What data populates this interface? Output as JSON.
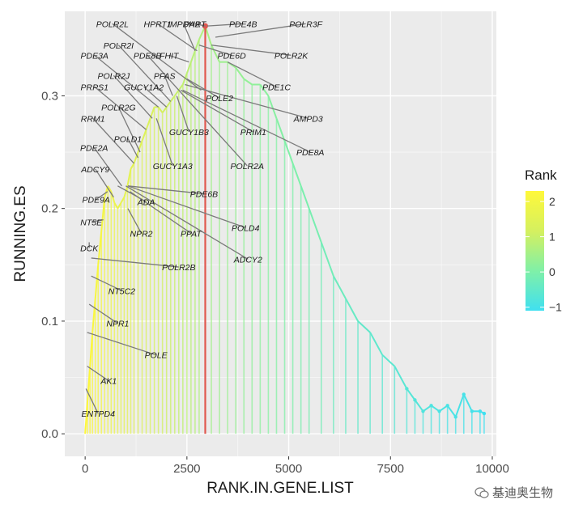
{
  "chart_data": {
    "type": "line",
    "title": "",
    "xlabel": "RANK.IN.GENE.LIST",
    "ylabel": "RUNNING.ES",
    "xlim": [
      -500,
      10100
    ],
    "ylim": [
      -0.02,
      0.375
    ],
    "x_ticks": [
      "0",
      "2500",
      "5000",
      "7500",
      "10000"
    ],
    "y_ticks": [
      "0.0",
      "0.1",
      "0.2",
      "0.3"
    ],
    "grid": true,
    "legend": {
      "title": "Rank",
      "position": "right",
      "ticks": [
        "2",
        "1",
        "0",
        "−1"
      ],
      "range": [
        -1.1,
        2.3
      ],
      "colors": [
        "#40E0F0",
        "#7FF0A8",
        "#D4F060",
        "#FFF83A"
      ]
    },
    "peak_rank": 2950,
    "series": [
      {
        "x": [
          0,
          60,
          120,
          180,
          250,
          320,
          400,
          480,
          560,
          640,
          720,
          800,
          880,
          960,
          1040,
          1120,
          1200,
          1300,
          1400,
          1500,
          1600,
          1700,
          1800,
          1900,
          2000,
          2100,
          2200,
          2300,
          2400,
          2500,
          2600,
          2700,
          2800,
          2950,
          3100,
          3300,
          3500,
          3700,
          3900,
          4100,
          4300,
          4500,
          4700,
          4900,
          5100,
          5300,
          5500,
          5800,
          6100,
          6400,
          6700,
          7000,
          7300,
          7600,
          7900,
          8100,
          8300,
          8500,
          8700,
          8900,
          9100,
          9300,
          9500,
          9700,
          9800
        ],
        "y": [
          0.0,
          0.03,
          0.06,
          0.09,
          0.12,
          0.15,
          0.18,
          0.21,
          0.22,
          0.215,
          0.205,
          0.2,
          0.205,
          0.21,
          0.22,
          0.235,
          0.24,
          0.25,
          0.26,
          0.27,
          0.28,
          0.29,
          0.29,
          0.285,
          0.29,
          0.295,
          0.3,
          0.305,
          0.31,
          0.32,
          0.33,
          0.34,
          0.35,
          0.362,
          0.345,
          0.33,
          0.33,
          0.325,
          0.315,
          0.31,
          0.31,
          0.3,
          0.28,
          0.26,
          0.24,
          0.22,
          0.2,
          0.17,
          0.14,
          0.12,
          0.1,
          0.09,
          0.07,
          0.06,
          0.04,
          0.03,
          0.02,
          0.025,
          0.02,
          0.025,
          0.015,
          0.035,
          0.02,
          0.02,
          0.018
        ]
      }
    ],
    "rank_values": [
      2.3,
      2.25,
      2.2,
      2.15,
      2.1,
      2.05,
      2.0,
      1.95,
      1.9,
      1.85,
      1.8,
      1.75,
      1.7,
      1.65,
      1.6,
      1.55,
      1.5,
      1.45,
      1.4,
      1.35,
      1.3,
      1.25,
      1.2,
      1.15,
      1.1,
      1.05,
      1.0,
      0.95,
      0.9,
      0.85,
      0.8,
      0.75,
      0.7,
      0.6,
      0.5,
      0.45,
      0.4,
      0.35,
      0.3,
      0.25,
      0.2,
      0.15,
      0.1,
      0.05,
      0.0,
      -0.05,
      -0.1,
      -0.2,
      -0.3,
      -0.4,
      -0.5,
      -0.55,
      -0.6,
      -0.65,
      -0.7,
      -0.75,
      -0.8,
      -0.85,
      -0.9,
      -0.92,
      -0.95,
      -0.97,
      -1.0,
      -1.05,
      -1.1
    ],
    "annotations": [
      {
        "label": "POLR2L",
        "label_x": 670,
        "label_y": 0.364,
        "line_x": 2850,
        "line_y": 0.305
      },
      {
        "label": "HPRT1",
        "label_x": 1780,
        "label_y": 0.364,
        "line_x": 2750,
        "line_y": 0.34
      },
      {
        "label": "IMPDH2",
        "label_x": 2420,
        "label_y": 0.364,
        "line_x": 2700,
        "line_y": 0.34
      },
      {
        "label": "PART",
        "label_x": 2700,
        "label_y": 0.364,
        "line_x": 2950,
        "line_y": 0.362
      },
      {
        "label": "PDE4B",
        "label_x": 3880,
        "label_y": 0.364,
        "line_x": 3000,
        "line_y": 0.362
      },
      {
        "label": "POLR3F",
        "label_x": 5420,
        "label_y": 0.364,
        "line_x": 3200,
        "line_y": 0.352
      },
      {
        "label": "POLR2I",
        "label_x": 820,
        "label_y": 0.345,
        "line_x": 2100,
        "line_y": 0.295
      },
      {
        "label": "PDE8B",
        "label_x": 1530,
        "label_y": 0.336,
        "line_x": 2300,
        "line_y": 0.305
      },
      {
        "label": "FHIT",
        "label_x": 2060,
        "label_y": 0.336,
        "line_x": 2550,
        "line_y": 0.33
      },
      {
        "label": "PDE6D",
        "label_x": 3600,
        "label_y": 0.336,
        "line_x": 2800,
        "line_y": 0.345
      },
      {
        "label": "POLR2K",
        "label_x": 5060,
        "label_y": 0.336,
        "line_x": 3100,
        "line_y": 0.345
      },
      {
        "label": "PDE3A",
        "label_x": 230,
        "label_y": 0.336,
        "line_x": 1800,
        "line_y": 0.29
      },
      {
        "label": "POLR2J",
        "label_x": 700,
        "label_y": 0.318,
        "line_x": 1650,
        "line_y": 0.28
      },
      {
        "label": "PFAS",
        "label_x": 1950,
        "label_y": 0.318,
        "line_x": 2150,
        "line_y": 0.3
      },
      {
        "label": "PRPS1",
        "label_x": 230,
        "label_y": 0.308,
        "line_x": 1500,
        "line_y": 0.27
      },
      {
        "label": "GUCY1A2",
        "label_x": 1440,
        "label_y": 0.308,
        "line_x": 2000,
        "line_y": 0.29
      },
      {
        "label": "PDE1C",
        "label_x": 4700,
        "label_y": 0.308,
        "line_x": 3500,
        "line_y": 0.33
      },
      {
        "label": "POLE2",
        "label_x": 3300,
        "label_y": 0.298,
        "line_x": 2500,
        "line_y": 0.315
      },
      {
        "label": "POLR2G",
        "label_x": 820,
        "label_y": 0.29,
        "line_x": 1350,
        "line_y": 0.25
      },
      {
        "label": "AMPD3",
        "label_x": 5480,
        "label_y": 0.28,
        "line_x": 2450,
        "line_y": 0.31
      },
      {
        "label": "RRM1",
        "label_x": 190,
        "label_y": 0.28,
        "line_x": 1200,
        "line_y": 0.24
      },
      {
        "label": "GUCY1B3",
        "label_x": 2550,
        "label_y": 0.268,
        "line_x": 2250,
        "line_y": 0.3
      },
      {
        "label": "PRIM1",
        "label_x": 4130,
        "label_y": 0.268,
        "line_x": 2350,
        "line_y": 0.305
      },
      {
        "label": "POLD1",
        "label_x": 1050,
        "label_y": 0.262,
        "line_x": 1300,
        "line_y": 0.245
      },
      {
        "label": "PDE2A",
        "label_x": 220,
        "label_y": 0.254,
        "line_x": 900,
        "line_y": 0.22
      },
      {
        "label": "PDE8A",
        "label_x": 5530,
        "label_y": 0.25,
        "line_x": 2400,
        "line_y": 0.305
      },
      {
        "label": "GUCY1A3",
        "label_x": 2150,
        "label_y": 0.238,
        "line_x": 1750,
        "line_y": 0.28
      },
      {
        "label": "POLR2A",
        "label_x": 3980,
        "label_y": 0.238,
        "line_x": 2300,
        "line_y": 0.305
      },
      {
        "label": "ADCY9",
        "label_x": 250,
        "label_y": 0.235,
        "line_x": 700,
        "line_y": 0.21
      },
      {
        "label": "PDE6B",
        "label_x": 2920,
        "label_y": 0.213,
        "line_x": 1050,
        "line_y": 0.22
      },
      {
        "label": "PDE9A",
        "label_x": 270,
        "label_y": 0.208,
        "line_x": 550,
        "line_y": 0.215
      },
      {
        "label": "ADA",
        "label_x": 1500,
        "label_y": 0.206,
        "line_x": 800,
        "line_y": 0.22
      },
      {
        "label": "NT5E",
        "label_x": 150,
        "label_y": 0.188,
        "line_x": 450,
        "line_y": 0.19
      },
      {
        "label": "POLD4",
        "label_x": 3940,
        "label_y": 0.183,
        "line_x": 1050,
        "line_y": 0.22
      },
      {
        "label": "NPR2",
        "label_x": 1380,
        "label_y": 0.178,
        "line_x": 1050,
        "line_y": 0.2
      },
      {
        "label": "PPAT",
        "label_x": 2600,
        "label_y": 0.178,
        "line_x": 1100,
        "line_y": 0.215
      },
      {
        "label": "DCK",
        "label_x": 100,
        "label_y": 0.165,
        "line_x": 100,
        "line_y": 0.17
      },
      {
        "label": "ADCY2",
        "label_x": 4000,
        "label_y": 0.155,
        "line_x": 1000,
        "line_y": 0.22
      },
      {
        "label": "POLR2B",
        "label_x": 2300,
        "label_y": 0.148,
        "line_x": 150,
        "line_y": 0.156
      },
      {
        "label": "NT5C2",
        "label_x": 900,
        "label_y": 0.127,
        "line_x": 150,
        "line_y": 0.14
      },
      {
        "label": "NPR1",
        "label_x": 800,
        "label_y": 0.098,
        "line_x": 100,
        "line_y": 0.115
      },
      {
        "label": "POLE",
        "label_x": 1740,
        "label_y": 0.07,
        "line_x": 50,
        "line_y": 0.09
      },
      {
        "label": "AK1",
        "label_x": 580,
        "label_y": 0.047,
        "line_x": 50,
        "line_y": 0.06
      },
      {
        "label": "ENTPD4",
        "label_x": 320,
        "label_y": 0.018,
        "line_x": 20,
        "line_y": 0.04
      }
    ]
  },
  "watermark": {
    "icon": "wechat-icon",
    "text": "基迪奥生物"
  }
}
